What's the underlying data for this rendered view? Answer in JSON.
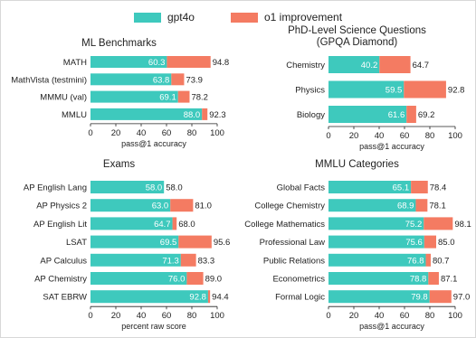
{
  "legend": [
    {
      "label": "gpt4o",
      "color": "#3ec9bd"
    },
    {
      "label": "o1 improvement",
      "color": "#f47b62"
    }
  ],
  "colors": {
    "base": "#3ec9bd",
    "improvement": "#f47b62",
    "base_label": "#ffffff",
    "total_label": "#222222"
  },
  "chart_data": [
    {
      "type": "bar",
      "orientation": "horizontal",
      "stacked": true,
      "title": "ML Benchmarks",
      "xlabel": "pass@1 accuracy",
      "xlim": [
        0,
        100
      ],
      "xticks": [
        "0",
        "20",
        "40",
        "60",
        "80",
        "100"
      ],
      "categories": [
        "MATH",
        "MathVista (testmini)",
        "MMMU (val)",
        "MMLU"
      ],
      "series": [
        {
          "name": "gpt4o",
          "values": [
            60.3,
            63.8,
            69.1,
            88.0
          ]
        },
        {
          "name": "o1 improvement",
          "totals": [
            94.8,
            73.9,
            78.2,
            92.3
          ]
        }
      ],
      "base_labels": [
        "60.3",
        "63.8",
        "69.1",
        "88.0"
      ],
      "total_labels": [
        "94.8",
        "73.9",
        "78.2",
        "92.3"
      ]
    },
    {
      "type": "bar",
      "orientation": "horizontal",
      "stacked": true,
      "title": "PhD-Level Science Questions\n(GPQA Diamond)",
      "xlabel": "pass@1 accuracy",
      "xlim": [
        0,
        100
      ],
      "xticks": [
        "0",
        "20",
        "40",
        "60",
        "80",
        "100"
      ],
      "categories": [
        "Chemistry",
        "Physics",
        "Biology"
      ],
      "series": [
        {
          "name": "gpt4o",
          "values": [
            40.2,
            59.5,
            61.6
          ]
        },
        {
          "name": "o1 improvement",
          "totals": [
            64.7,
            92.8,
            69.2
          ]
        }
      ],
      "base_labels": [
        "40.2",
        "59.5",
        "61.6"
      ],
      "total_labels": [
        "64.7",
        "92.8",
        "69.2"
      ]
    },
    {
      "type": "bar",
      "orientation": "horizontal",
      "stacked": true,
      "title": "Exams",
      "xlabel": "percent raw score",
      "xlim": [
        0,
        100
      ],
      "xticks": [
        "0",
        "20",
        "40",
        "60",
        "80",
        "100"
      ],
      "categories": [
        "AP English Lang",
        "AP Physics 2",
        "AP English Lit",
        "LSAT",
        "AP Calculus",
        "AP Chemistry",
        "SAT EBRW"
      ],
      "series": [
        {
          "name": "gpt4o",
          "values": [
            58.0,
            63.0,
            64.7,
            69.5,
            71.3,
            76.0,
            92.8
          ]
        },
        {
          "name": "o1 improvement",
          "totals": [
            58.0,
            81.0,
            68.0,
            95.6,
            83.3,
            89.0,
            94.4
          ]
        }
      ],
      "base_labels": [
        "58.0",
        "63.0",
        "64.7",
        "69.5",
        "71.3",
        "76.0",
        "92.8"
      ],
      "total_labels": [
        "58.0",
        "81.0",
        "68.0",
        "95.6",
        "83.3",
        "89.0",
        "94.4"
      ]
    },
    {
      "type": "bar",
      "orientation": "horizontal",
      "stacked": true,
      "title": "MMLU Categories",
      "xlabel": "pass@1 accuracy",
      "xlim": [
        0,
        100
      ],
      "xticks": [
        "0",
        "20",
        "40",
        "60",
        "80",
        "100"
      ],
      "categories": [
        "Global Facts",
        "College Chemistry",
        "College Mathematics",
        "Professional Law",
        "Public Relations",
        "Econometrics",
        "Formal Logic"
      ],
      "series": [
        {
          "name": "gpt4o",
          "values": [
            65.1,
            68.9,
            75.2,
            75.6,
            76.8,
            78.8,
            79.8
          ]
        },
        {
          "name": "o1 improvement",
          "totals": [
            78.4,
            78.1,
            98.1,
            85.0,
            80.7,
            87.1,
            97.0
          ]
        }
      ],
      "base_labels": [
        "65.1",
        "68.9",
        "75.2",
        "75.6",
        "76.8",
        "78.8",
        "79.8"
      ],
      "total_labels": [
        "78.4",
        "78.1",
        "98.1",
        "85.0",
        "80.7",
        "87.1",
        "97.0"
      ]
    }
  ]
}
